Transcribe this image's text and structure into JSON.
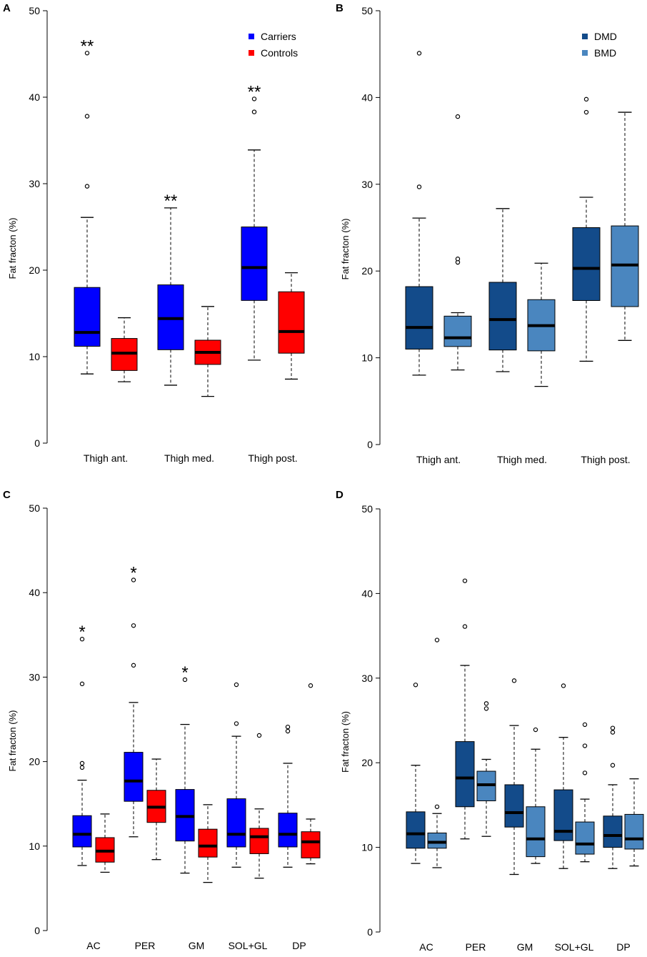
{
  "colors": {
    "carriers": "#0000ff",
    "controls": "#ff0000",
    "dmd": "#134b8a",
    "bmd": "#4a86bf",
    "median": "#000000"
  },
  "chart_data": [
    {
      "panel": "A",
      "type": "boxplot",
      "ylabel": "Fat fracton (%)",
      "ylim": [
        0,
        50
      ],
      "yticks": [
        "0",
        "10",
        "20",
        "30",
        "40",
        "50"
      ],
      "legend": [
        {
          "name": "Carriers",
          "color": "#0000ff"
        },
        {
          "name": "Controls",
          "color": "#ff0000"
        }
      ],
      "legend_position": "top-right",
      "groups": [
        {
          "label": "Thigh ant.",
          "sig": "**",
          "boxes": [
            {
              "series": "Carriers",
              "whisker_low": 8.0,
              "q1": 11.2,
              "median": 12.8,
              "q3": 18.0,
              "whisker_high": 26.1,
              "outliers": [
                29.7,
                37.8,
                45.1
              ]
            },
            {
              "series": "Controls",
              "whisker_low": 7.1,
              "q1": 8.4,
              "median": 10.4,
              "q3": 12.1,
              "whisker_high": 14.5,
              "outliers": []
            }
          ]
        },
        {
          "label": "Thigh med.",
          "sig": "**",
          "boxes": [
            {
              "series": "Carriers",
              "whisker_low": 6.7,
              "q1": 10.8,
              "median": 14.4,
              "q3": 18.3,
              "whisker_high": 27.2,
              "outliers": []
            },
            {
              "series": "Controls",
              "whisker_low": 5.4,
              "q1": 9.1,
              "median": 10.5,
              "q3": 11.9,
              "whisker_high": 15.8,
              "outliers": []
            }
          ]
        },
        {
          "label": "Thigh post.",
          "sig": "**",
          "boxes": [
            {
              "series": "Carriers",
              "whisker_low": 9.6,
              "q1": 16.5,
              "median": 20.3,
              "q3": 25.0,
              "whisker_high": 33.9,
              "outliers": [
                38.3,
                39.8
              ]
            },
            {
              "series": "Controls",
              "whisker_low": 7.4,
              "q1": 10.4,
              "median": 12.9,
              "q3": 17.5,
              "whisker_high": 19.7,
              "outliers": []
            }
          ]
        }
      ]
    },
    {
      "panel": "B",
      "type": "boxplot",
      "ylabel": "Fat fracton (%)",
      "ylim": [
        0,
        50
      ],
      "yticks": [
        "0",
        "10",
        "20",
        "30",
        "40",
        "50"
      ],
      "legend": [
        {
          "name": "DMD",
          "color": "#134b8a"
        },
        {
          "name": "BMD",
          "color": "#4a86bf"
        }
      ],
      "legend_position": "top-right",
      "groups": [
        {
          "label": "Thigh ant.",
          "sig": "",
          "boxes": [
            {
              "series": "DMD",
              "whisker_low": 8.0,
              "q1": 11.0,
              "median": 13.5,
              "q3": 18.2,
              "whisker_high": 26.1,
              "outliers": [
                29.7,
                45.1
              ]
            },
            {
              "series": "BMD",
              "whisker_low": 8.6,
              "q1": 11.3,
              "median": 12.3,
              "q3": 14.8,
              "whisker_high": 15.2,
              "outliers": [
                21.0,
                21.4,
                37.8
              ]
            }
          ]
        },
        {
          "label": "Thigh med.",
          "sig": "",
          "boxes": [
            {
              "series": "DMD",
              "whisker_low": 8.4,
              "q1": 10.9,
              "median": 14.4,
              "q3": 18.7,
              "whisker_high": 27.2,
              "outliers": []
            },
            {
              "series": "BMD",
              "whisker_low": 6.7,
              "q1": 10.8,
              "median": 13.7,
              "q3": 16.7,
              "whisker_high": 20.9,
              "outliers": []
            }
          ]
        },
        {
          "label": "Thigh post.",
          "sig": "",
          "boxes": [
            {
              "series": "DMD",
              "whisker_low": 9.6,
              "q1": 16.6,
              "median": 20.3,
              "q3": 25.0,
              "whisker_high": 28.5,
              "outliers": [
                38.3,
                39.8
              ]
            },
            {
              "series": "BMD",
              "whisker_low": 12.0,
              "q1": 15.9,
              "median": 20.7,
              "q3": 25.2,
              "whisker_high": 38.3,
              "outliers": []
            }
          ]
        }
      ]
    },
    {
      "panel": "C",
      "type": "boxplot",
      "ylabel": "Fat fracton (%)",
      "ylim": [
        0,
        50
      ],
      "yticks": [
        "0",
        "10",
        "20",
        "30",
        "40",
        "50"
      ],
      "legend": [],
      "groups": [
        {
          "label": "AC",
          "sig": "*",
          "boxes": [
            {
              "series": "Carriers",
              "whisker_low": 7.7,
              "q1": 9.9,
              "median": 11.4,
              "q3": 13.6,
              "whisker_high": 17.8,
              "outliers": [
                19.3,
                19.8,
                29.2,
                34.5
              ]
            },
            {
              "series": "Controls",
              "whisker_low": 6.9,
              "q1": 8.1,
              "median": 9.4,
              "q3": 11.0,
              "whisker_high": 13.8,
              "outliers": []
            }
          ]
        },
        {
          "label": "PER",
          "sig": "*",
          "boxes": [
            {
              "series": "Carriers",
              "whisker_low": 11.1,
              "q1": 15.3,
              "median": 17.7,
              "q3": 21.1,
              "whisker_high": 27.0,
              "outliers": [
                31.4,
                36.1,
                41.5
              ]
            },
            {
              "series": "Controls",
              "whisker_low": 8.4,
              "q1": 12.8,
              "median": 14.6,
              "q3": 16.6,
              "whisker_high": 20.3,
              "outliers": []
            }
          ]
        },
        {
          "label": "GM",
          "sig": "*",
          "boxes": [
            {
              "series": "Carriers",
              "whisker_low": 6.8,
              "q1": 10.6,
              "median": 13.5,
              "q3": 16.7,
              "whisker_high": 24.4,
              "outliers": [
                29.7
              ]
            },
            {
              "series": "Controls",
              "whisker_low": 5.7,
              "q1": 8.7,
              "median": 10.0,
              "q3": 12.0,
              "whisker_high": 14.9,
              "outliers": []
            }
          ]
        },
        {
          "label": "SOL+GL",
          "sig": "",
          "boxes": [
            {
              "series": "Carriers",
              "whisker_low": 7.5,
              "q1": 9.9,
              "median": 11.4,
              "q3": 15.6,
              "whisker_high": 23.0,
              "outliers": [
                24.5,
                29.1
              ]
            },
            {
              "series": "Controls",
              "whisker_low": 6.2,
              "q1": 9.1,
              "median": 11.1,
              "q3": 12.1,
              "whisker_high": 14.4,
              "outliers": [
                23.1
              ]
            }
          ]
        },
        {
          "label": "DP",
          "sig": "",
          "boxes": [
            {
              "series": "Carriers",
              "whisker_low": 7.5,
              "q1": 9.9,
              "median": 11.4,
              "q3": 13.9,
              "whisker_high": 19.8,
              "outliers": [
                23.6,
                24.1
              ]
            },
            {
              "series": "Controls",
              "whisker_low": 7.9,
              "q1": 8.6,
              "median": 10.5,
              "q3": 11.7,
              "whisker_high": 13.2,
              "outliers": [
                29.0
              ]
            }
          ]
        }
      ]
    },
    {
      "panel": "D",
      "type": "boxplot",
      "ylabel": "Fat fracton (%)",
      "ylim": [
        0,
        50
      ],
      "yticks": [
        "0",
        "10",
        "20",
        "30",
        "40",
        "50"
      ],
      "legend": [],
      "groups": [
        {
          "label": "AC",
          "sig": "",
          "boxes": [
            {
              "series": "DMD",
              "whisker_low": 8.1,
              "q1": 9.9,
              "median": 11.6,
              "q3": 14.2,
              "whisker_high": 19.7,
              "outliers": [
                29.2
              ]
            },
            {
              "series": "BMD",
              "whisker_low": 7.6,
              "q1": 9.9,
              "median": 10.6,
              "q3": 11.7,
              "whisker_high": 14.0,
              "outliers": [
                14.8,
                34.5
              ]
            }
          ]
        },
        {
          "label": "PER",
          "sig": "",
          "boxes": [
            {
              "series": "DMD",
              "whisker_low": 11.0,
              "q1": 14.8,
              "median": 18.2,
              "q3": 22.5,
              "whisker_high": 31.5,
              "outliers": [
                36.1,
                41.5
              ]
            },
            {
              "series": "BMD",
              "whisker_low": 11.3,
              "q1": 15.5,
              "median": 17.4,
              "q3": 19.0,
              "whisker_high": 20.4,
              "outliers": [
                26.4,
                27.0
              ]
            }
          ]
        },
        {
          "label": "GM",
          "sig": "",
          "boxes": [
            {
              "series": "DMD",
              "whisker_low": 6.8,
              "q1": 12.4,
              "median": 14.1,
              "q3": 17.4,
              "whisker_high": 24.4,
              "outliers": [
                29.7
              ]
            },
            {
              "series": "BMD",
              "whisker_low": 8.1,
              "q1": 8.9,
              "median": 11.0,
              "q3": 14.8,
              "whisker_high": 21.6,
              "outliers": [
                23.9
              ]
            }
          ]
        },
        {
          "label": "SOL+GL",
          "sig": "",
          "boxes": [
            {
              "series": "DMD",
              "whisker_low": 7.5,
              "q1": 10.8,
              "median": 11.9,
              "q3": 16.8,
              "whisker_high": 23.0,
              "outliers": [
                29.1
              ]
            },
            {
              "series": "BMD",
              "whisker_low": 8.3,
              "q1": 9.2,
              "median": 10.4,
              "q3": 13.0,
              "whisker_high": 15.7,
              "outliers": [
                18.8,
                22.0,
                24.5
              ]
            }
          ]
        },
        {
          "label": "DP",
          "sig": "",
          "boxes": [
            {
              "series": "DMD",
              "whisker_low": 7.5,
              "q1": 10.0,
              "median": 11.4,
              "q3": 13.7,
              "whisker_high": 17.4,
              "outliers": [
                19.7,
                23.6,
                24.1
              ]
            },
            {
              "series": "BMD",
              "whisker_low": 7.8,
              "q1": 9.8,
              "median": 11.0,
              "q3": 13.9,
              "whisker_high": 18.1,
              "outliers": []
            }
          ]
        }
      ]
    }
  ]
}
